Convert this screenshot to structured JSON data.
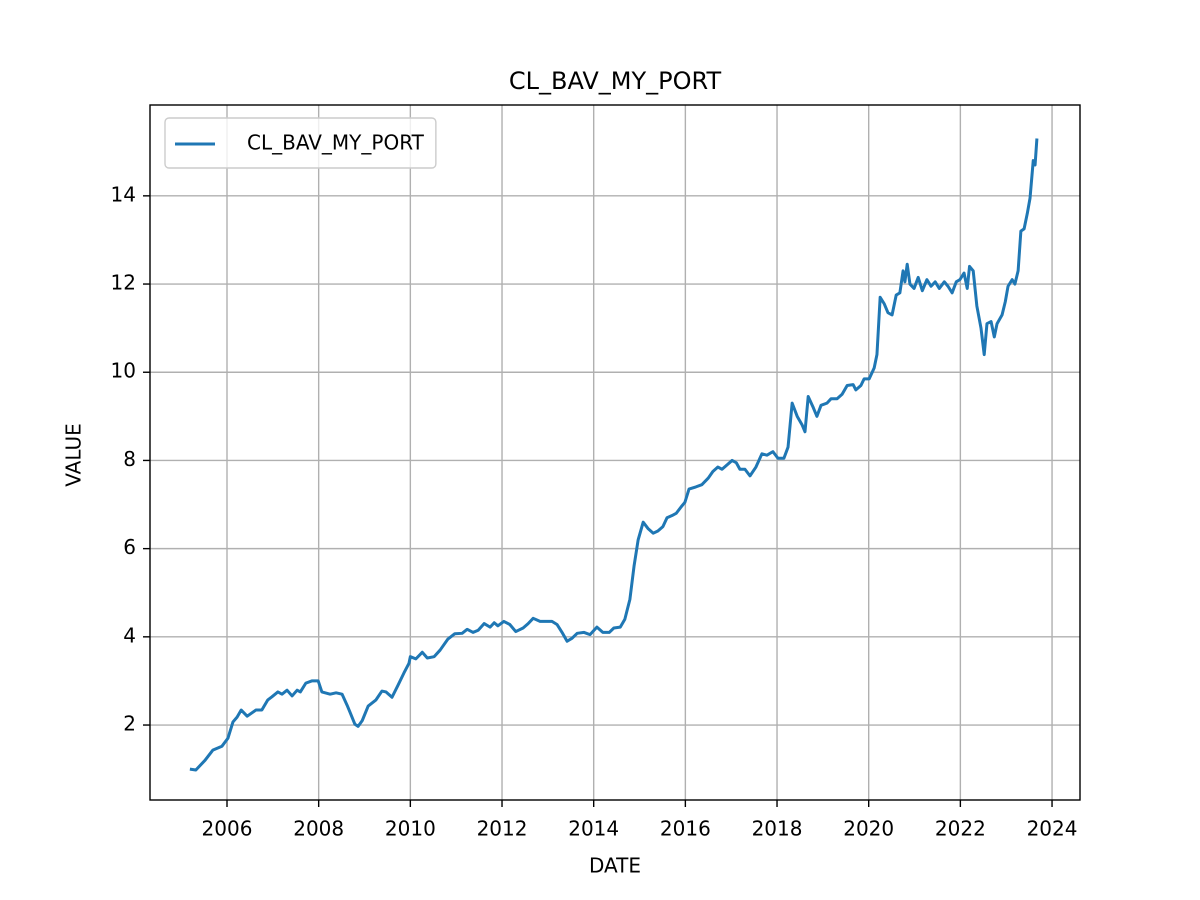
{
  "chart_data": {
    "type": "line",
    "title": "CL_BAV_MY_PORT",
    "x_label": "DATE",
    "y_label": "VALUE",
    "x": [
      2005.19,
      2005.32,
      2005.52,
      2005.69,
      2005.89,
      2006.02,
      2006.13,
      2006.22,
      2006.31,
      2006.44,
      2006.63,
      2006.76,
      2006.89,
      2006.98,
      2007.11,
      2007.2,
      2007.31,
      2007.42,
      2007.53,
      2007.6,
      2007.72,
      2007.85,
      2007.99,
      2008.07,
      2008.25,
      2008.38,
      2008.51,
      2008.62,
      2008.68,
      2008.79,
      2008.86,
      2008.95,
      2009.08,
      2009.25,
      2009.38,
      2009.47,
      2009.6,
      2009.73,
      2009.86,
      2009.97,
      2010.0,
      2010.12,
      2010.26,
      2010.37,
      2010.52,
      2010.65,
      2010.82,
      2010.97,
      2011.13,
      2011.24,
      2011.37,
      2011.48,
      2011.61,
      2011.74,
      2011.83,
      2011.91,
      2012.04,
      2012.17,
      2012.3,
      2012.46,
      2012.57,
      2012.68,
      2012.83,
      2012.96,
      2013.09,
      2013.2,
      2013.31,
      2013.42,
      2013.53,
      2013.64,
      2013.79,
      2013.92,
      2014.07,
      2014.2,
      2014.34,
      2014.44,
      2014.58,
      2014.68,
      2014.79,
      2014.88,
      2014.97,
      2015.08,
      2015.19,
      2015.3,
      2015.4,
      2015.51,
      2015.6,
      2015.71,
      2015.8,
      2015.91,
      2015.99,
      2016.08,
      2016.23,
      2016.36,
      2016.5,
      2016.6,
      2016.71,
      2016.8,
      2016.91,
      2017.02,
      2017.11,
      2017.19,
      2017.3,
      2017.41,
      2017.54,
      2017.67,
      2017.78,
      2017.91,
      2018.02,
      2018.15,
      2018.24,
      2018.33,
      2018.44,
      2018.55,
      2018.61,
      2018.68,
      2018.79,
      2018.87,
      2018.96,
      2019.09,
      2019.18,
      2019.31,
      2019.42,
      2019.53,
      2019.66,
      2019.72,
      2019.83,
      2019.9,
      2020.01,
      2020.12,
      2020.18,
      2020.25,
      2020.34,
      2020.42,
      2020.51,
      2020.6,
      2020.68,
      2020.75,
      2020.79,
      2020.84,
      2020.9,
      2020.99,
      2021.08,
      2021.17,
      2021.27,
      2021.36,
      2021.45,
      2021.54,
      2021.65,
      2021.73,
      2021.82,
      2021.91,
      2021.99,
      2022.08,
      2022.15,
      2022.2,
      2022.28,
      2022.36,
      2022.45,
      2022.52,
      2022.58,
      2022.67,
      2022.74,
      2022.8,
      2022.91,
      2022.98,
      2023.04,
      2023.13,
      2023.19,
      2023.26,
      2023.32,
      2023.39,
      2023.46,
      2023.52,
      2023.59,
      2023.63,
      2023.67
    ],
    "series": [
      {
        "name": "CL_BAV_MY_PORT",
        "color": "#1f77b4",
        "values": [
          1.0,
          0.98,
          1.2,
          1.43,
          1.52,
          1.7,
          2.07,
          2.18,
          2.34,
          2.2,
          2.34,
          2.34,
          2.57,
          2.64,
          2.75,
          2.7,
          2.79,
          2.66,
          2.79,
          2.75,
          2.95,
          3.0,
          3.0,
          2.75,
          2.7,
          2.73,
          2.7,
          2.45,
          2.3,
          2.02,
          1.97,
          2.1,
          2.43,
          2.57,
          2.77,
          2.75,
          2.63,
          2.9,
          3.18,
          3.4,
          3.55,
          3.5,
          3.65,
          3.52,
          3.55,
          3.7,
          3.95,
          4.07,
          4.08,
          4.17,
          4.1,
          4.15,
          4.3,
          4.22,
          4.32,
          4.25,
          4.35,
          4.28,
          4.12,
          4.2,
          4.3,
          4.42,
          4.35,
          4.35,
          4.35,
          4.28,
          4.1,
          3.9,
          3.97,
          4.08,
          4.1,
          4.05,
          4.22,
          4.1,
          4.1,
          4.2,
          4.22,
          4.4,
          4.85,
          5.6,
          6.2,
          6.6,
          6.45,
          6.35,
          6.4,
          6.5,
          6.7,
          6.75,
          6.8,
          6.95,
          7.05,
          7.35,
          7.4,
          7.45,
          7.6,
          7.75,
          7.85,
          7.8,
          7.9,
          8.0,
          7.95,
          7.8,
          7.8,
          7.65,
          7.85,
          8.15,
          8.12,
          8.2,
          8.05,
          8.05,
          8.3,
          9.3,
          9.0,
          8.8,
          8.65,
          9.45,
          9.2,
          9.0,
          9.25,
          9.3,
          9.4,
          9.4,
          9.5,
          9.7,
          9.72,
          9.6,
          9.7,
          9.85,
          9.85,
          10.1,
          10.4,
          11.7,
          11.55,
          11.35,
          11.3,
          11.75,
          11.8,
          12.3,
          12.05,
          12.45,
          12.0,
          11.9,
          12.15,
          11.85,
          12.1,
          11.95,
          12.05,
          11.9,
          12.05,
          11.95,
          11.8,
          12.05,
          12.1,
          12.25,
          11.9,
          12.4,
          12.3,
          11.5,
          11.0,
          10.4,
          11.1,
          11.15,
          10.8,
          11.1,
          11.3,
          11.6,
          11.95,
          12.1,
          12.0,
          12.3,
          13.2,
          13.25,
          13.6,
          13.95,
          14.8,
          14.7,
          15.3
        ]
      }
    ],
    "xlim": [
      2004.32,
      2024.61
    ],
    "xticks": [
      2006,
      2008,
      2010,
      2012,
      2014,
      2016,
      2018,
      2020,
      2022,
      2024
    ],
    "ylim": [
      0.3,
      16.06
    ],
    "yticks": [
      2,
      4,
      6,
      8,
      10,
      12,
      14
    ],
    "grid": true,
    "legend": "upper left"
  }
}
